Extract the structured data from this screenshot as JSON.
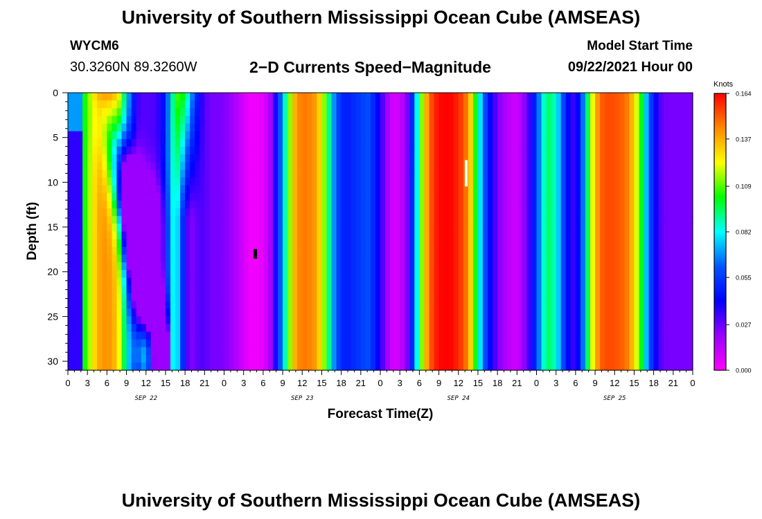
{
  "header": {
    "title_top": "University of Southern Mississippi Ocean Cube (AMSEAS)",
    "station_id": "WYCM6",
    "station_coords": "30.3260N  89.3260W",
    "subtitle": "2−D Currents Speed−Magnitude",
    "model_start_label": "Model Start Time",
    "model_start_value": "09/22/2021 Hour 00"
  },
  "footer": {
    "title_bottom": "University of Southern Mississippi Ocean Cube (AMSEAS)"
  },
  "chart_data": {
    "type": "heatmap",
    "ylabel": "Depth (ft)",
    "xlabel": "Forecast Time(Z)",
    "y_range": [
      0,
      31
    ],
    "y_ticks": [
      0,
      5,
      10,
      15,
      20,
      25,
      30
    ],
    "x_range_hours": [
      0,
      96
    ],
    "x_tick_labels": [
      "0",
      "3",
      "6",
      "9",
      "12",
      "15",
      "18",
      "21",
      "0",
      "3",
      "6",
      "9",
      "12",
      "15",
      "18",
      "21",
      "0",
      "3",
      "6",
      "9",
      "12",
      "15",
      "18",
      "21",
      "0",
      "3",
      "6",
      "9",
      "12",
      "15",
      "18",
      "21",
      "0"
    ],
    "day_labels": [
      "SEP 22",
      "SEP 23",
      "SEP 24",
      "SEP 25"
    ],
    "colorbar": {
      "unit": "Knots",
      "min": 0.0,
      "max": 0.164,
      "tick_labels": [
        "0.164",
        "0.137",
        "0.109",
        "0.082",
        "0.055",
        "0.027",
        "0.000"
      ],
      "tick_values": [
        0.164,
        0.137,
        0.109,
        0.082,
        0.055,
        0.027,
        0.0
      ],
      "colors": [
        "#ff00ff",
        "#9900ff",
        "#0000ff",
        "#0055ff",
        "#00ffff",
        "#00ff00",
        "#ffff00",
        "#ff8800",
        "#ff0000"
      ]
    },
    "time_profile_hours": [
      0,
      1,
      2,
      3,
      4,
      5,
      6,
      7,
      8,
      9,
      10,
      11,
      12,
      13,
      14,
      15,
      16,
      17,
      18,
      19,
      20,
      21,
      22,
      23,
      24,
      25,
      26,
      27,
      28,
      29,
      30,
      31,
      32,
      33,
      34,
      35,
      36,
      37,
      38,
      39,
      40,
      41,
      42,
      43,
      44,
      45,
      46,
      47,
      48,
      49,
      50,
      51,
      52,
      53,
      54,
      55,
      56,
      57,
      58,
      59,
      60,
      61,
      62,
      63,
      64,
      65,
      66,
      67,
      68,
      69,
      70,
      71,
      72,
      73,
      74,
      75,
      76,
      77,
      78,
      79,
      80,
      81,
      82,
      83,
      84,
      85,
      86,
      87,
      88,
      89,
      90,
      91,
      92,
      93,
      94,
      95,
      96
    ],
    "time_profile_speed": [
      0.075,
      0.085,
      0.095,
      0.11,
      0.128,
      0.14,
      0.142,
      0.138,
      0.12,
      0.08,
      0.05,
      0.03,
      0.03,
      0.03,
      0.035,
      0.05,
      0.09,
      0.11,
      0.1,
      0.07,
      0.045,
      0.03,
      0.025,
      0.025,
      0.024,
      0.02,
      0.015,
      0.008,
      0.003,
      0.003,
      0.005,
      0.015,
      0.04,
      0.075,
      0.11,
      0.14,
      0.146,
      0.145,
      0.14,
      0.125,
      0.095,
      0.065,
      0.05,
      0.048,
      0.052,
      0.055,
      0.06,
      0.05,
      0.035,
      0.02,
      0.008,
      0.01,
      0.02,
      0.055,
      0.1,
      0.135,
      0.155,
      0.163,
      0.164,
      0.163,
      0.158,
      0.15,
      0.128,
      0.09,
      0.06,
      0.04,
      0.025,
      0.018,
      0.012,
      0.01,
      0.02,
      0.035,
      0.055,
      0.085,
      0.095,
      0.085,
      0.06,
      0.04,
      0.03,
      0.06,
      0.1,
      0.135,
      0.15,
      0.153,
      0.152,
      0.15,
      0.145,
      0.13,
      0.105,
      0.07,
      0.045,
      0.03,
      0.025,
      0.025,
      0.025,
      0.025,
      0.025
    ],
    "markers": [
      {
        "hour": 28.8,
        "depth": 18.0,
        "color": "#000000"
      },
      {
        "hour": 61.2,
        "depth": 9.0,
        "color": "#ffffff"
      }
    ]
  }
}
